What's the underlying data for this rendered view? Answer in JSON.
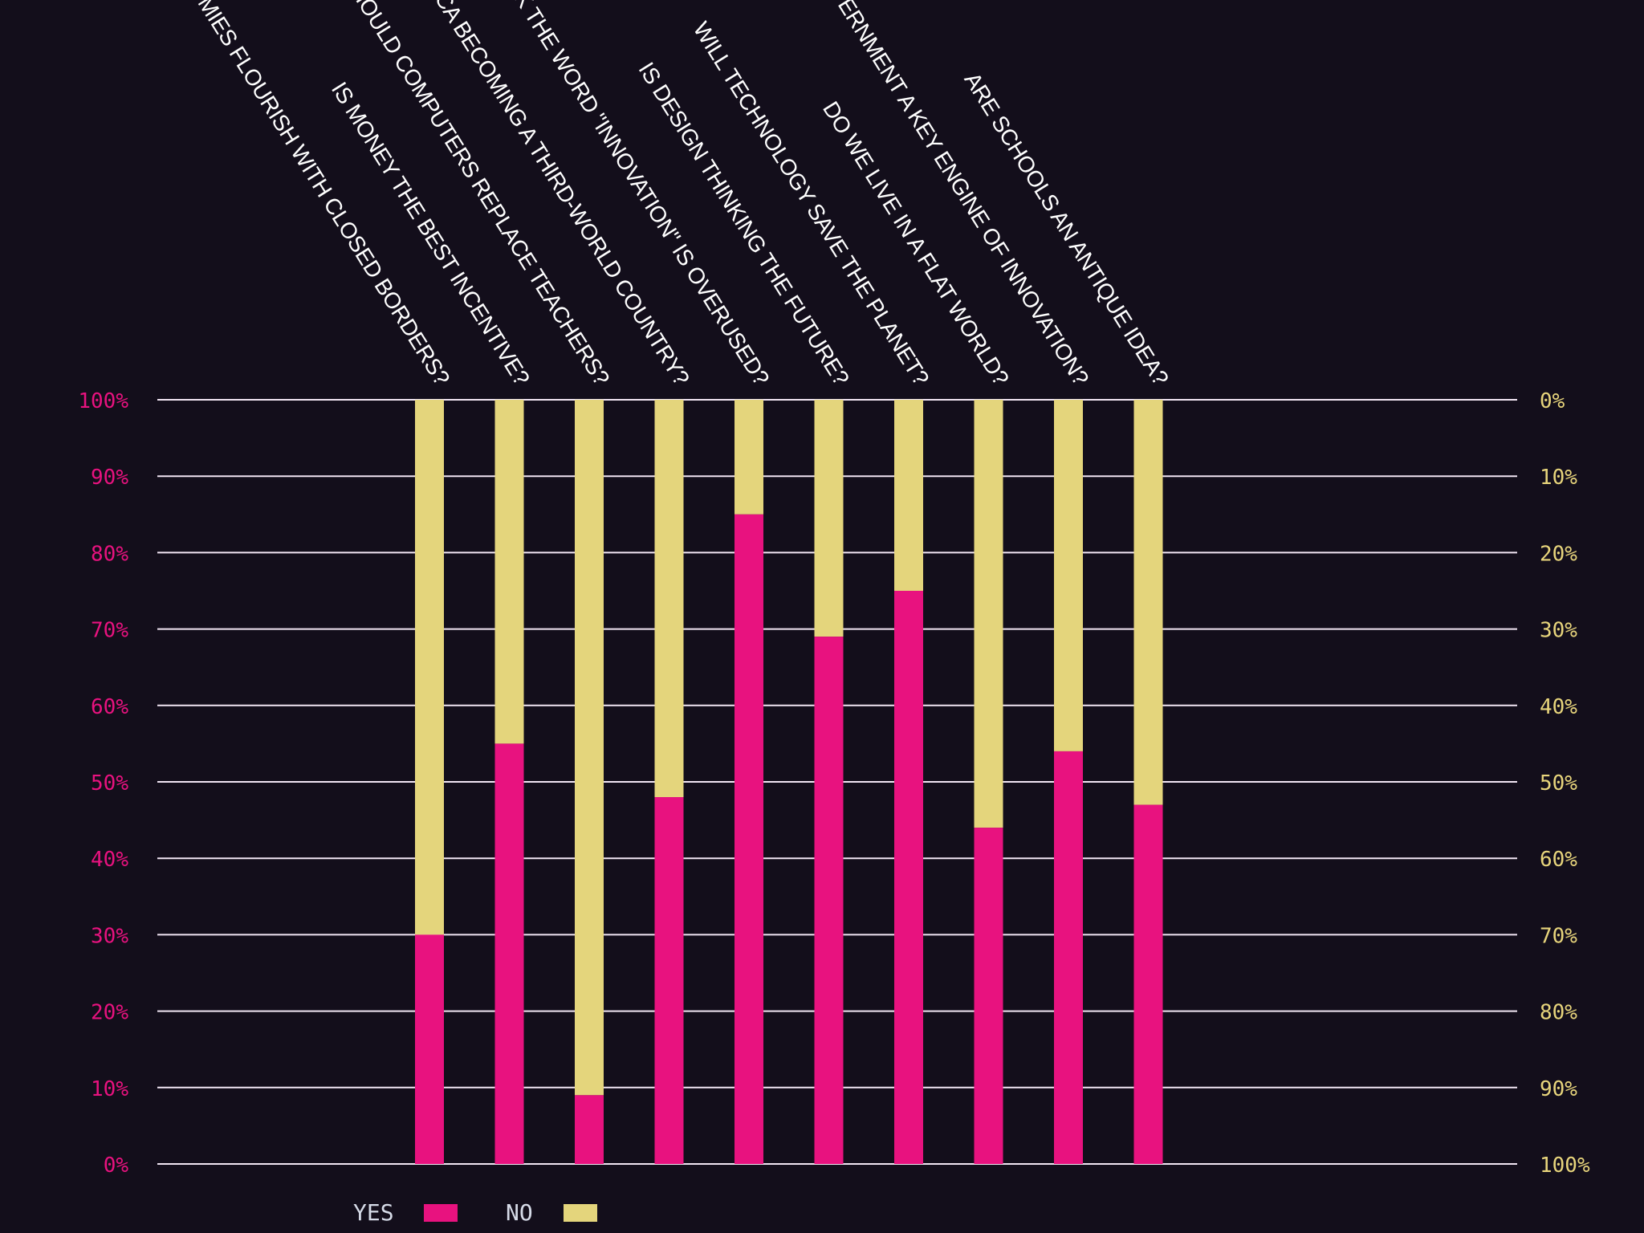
{
  "chart_data": {
    "type": "bar",
    "stacked": true,
    "categories": [
      "CAN ECONOMIES FLOURISH WITH CLOSED BORDERS?",
      "IS MONEY THE BEST INCENTIVE?",
      "SHOULD COMPUTERS REPLACE TEACHERS?",
      "IS AMERICA BECOMING A THIRD-WORLD COUNTRY?",
      "DO YOU THINK THE WORD \"INNOVATION\" IS OVERUSED?",
      "IS DESIGN THINKING THE FUTURE?",
      "WILL TECHNOLOGY SAVE THE PLANET?",
      "DO WE LIVE IN A FLAT WORLD?",
      "IS GOVERNMENT A KEY ENGINE OF INNOVATION?",
      "ARE SCHOOLS AN ANTIQUE IDEA?"
    ],
    "series": [
      {
        "name": "YES",
        "color": "#e8127f",
        "values": [
          30,
          55,
          9,
          48,
          85,
          69,
          75,
          44,
          54,
          47
        ]
      },
      {
        "name": "NO",
        "color": "#e4d57c",
        "values": [
          70,
          45,
          91,
          52,
          15,
          31,
          25,
          56,
          46,
          53
        ]
      }
    ],
    "ylim": [
      0,
      100
    ],
    "left_ticks": [
      "0%",
      "10%",
      "20%",
      "30%",
      "40%",
      "50%",
      "60%",
      "70%",
      "80%",
      "90%",
      "100%"
    ],
    "right_ticks": [
      "100%",
      "90%",
      "80%",
      "70%",
      "60%",
      "50%",
      "40%",
      "30%",
      "20%",
      "10%",
      "0%"
    ],
    "legend": [
      "YES",
      "NO"
    ],
    "legend_position": "bottom-left",
    "grid": true
  }
}
